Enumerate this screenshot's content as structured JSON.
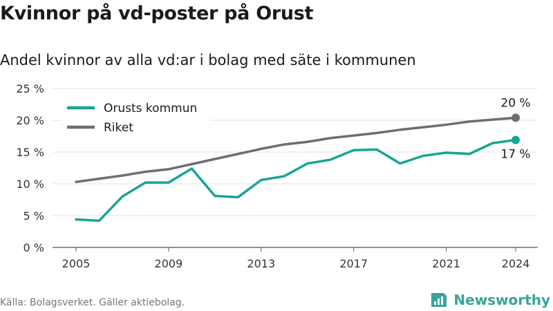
{
  "header": {
    "title": "Kvinnor på vd-poster på Orust",
    "subtitle": "Andel kvinnor av alla vd:ar i bolag med säte i kommunen"
  },
  "footer": {
    "source": "Källa: Bolagsverket. Gäller aktiebolag.",
    "brand": "Newsworthy",
    "brand_color": "#3aa39a"
  },
  "chart_data": {
    "type": "line",
    "x": [
      2005,
      2006,
      2007,
      2008,
      2009,
      2010,
      2011,
      2012,
      2013,
      2014,
      2015,
      2016,
      2017,
      2018,
      2019,
      2020,
      2021,
      2022,
      2023,
      2024
    ],
    "series": [
      {
        "name": "Orusts kommun",
        "color": "#16a597",
        "values": [
          4.4,
          4.2,
          8.0,
          10.2,
          10.2,
          12.4,
          8.1,
          7.9,
          10.6,
          11.2,
          13.2,
          13.8,
          15.3,
          15.4,
          13.2,
          14.4,
          14.9,
          14.7,
          16.4,
          16.9
        ],
        "end_label": "17 %"
      },
      {
        "name": "Riket",
        "color": "#6d6d72",
        "values": [
          10.3,
          10.8,
          11.3,
          11.9,
          12.3,
          13.1,
          13.9,
          14.7,
          15.5,
          16.2,
          16.6,
          17.2,
          17.6,
          18.0,
          18.5,
          18.9,
          19.3,
          19.8,
          20.1,
          20.4
        ],
        "end_label": "20 %"
      }
    ],
    "x_ticks": [
      2005,
      2009,
      2013,
      2017,
      2021,
      2024
    ],
    "y_ticks": [
      0,
      5,
      10,
      15,
      20,
      25
    ],
    "y_tick_labels": [
      "0 %",
      "5 %",
      "10 %",
      "15 %",
      "20 %",
      "25 %"
    ],
    "ylim": [
      0,
      25
    ],
    "xlim": [
      2005,
      2024
    ],
    "xlabel": "",
    "ylabel": "",
    "grid": true,
    "legend_position": "top-left"
  }
}
